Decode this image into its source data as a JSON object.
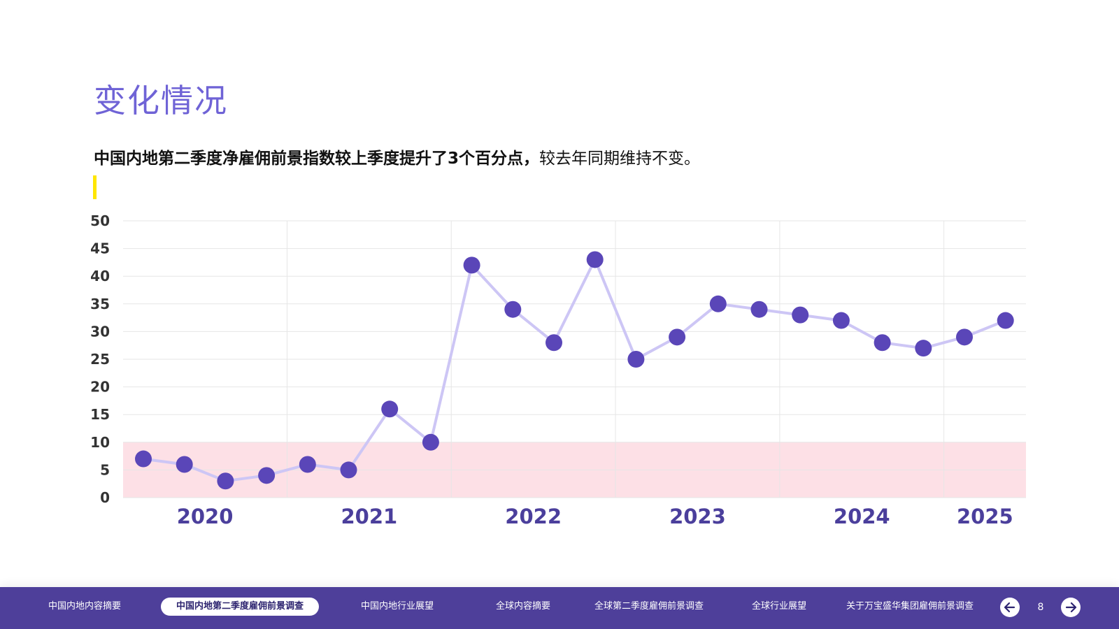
{
  "page": {
    "title": "变化情况",
    "subtitle_strong": "中国内地第二季度净雇佣前景指数较上季度提升了3个百分点，",
    "subtitle_rest": "较去年同期维持不变。"
  },
  "chart_data": {
    "type": "line",
    "ylim": [
      0,
      50
    ],
    "yticks": [
      0,
      5,
      10,
      15,
      20,
      25,
      30,
      35,
      40,
      45,
      50
    ],
    "year_labels": [
      "2020",
      "2021",
      "2022",
      "2023",
      "2024",
      "2025"
    ],
    "values": [
      7,
      6,
      3,
      4,
      6,
      5,
      16,
      10,
      42,
      34,
      28,
      43,
      25,
      29,
      35,
      34,
      33,
      32,
      28,
      27,
      29,
      32
    ],
    "highlight_band": [
      0,
      10
    ],
    "grid": true,
    "colors": {
      "line": "#cdc6f5",
      "marker": "#5a46b8",
      "band": "#fde0e6",
      "grid": "#e6e6e6",
      "axis_text": "#333333",
      "year_text": "#4b3f9c"
    }
  },
  "nav": {
    "items": [
      "中国内地内容摘要",
      "中国内地第二季度雇佣前景调查",
      "中国内地行业展望",
      "全球内容摘要",
      "全球第二季度雇佣前景调查",
      "全球行业展望",
      "关于万宝盛华集团雇佣前景调查"
    ],
    "active_index": 1,
    "page_number": "8",
    "prev_icon": "arrow-left-icon",
    "next_icon": "arrow-right-icon"
  }
}
